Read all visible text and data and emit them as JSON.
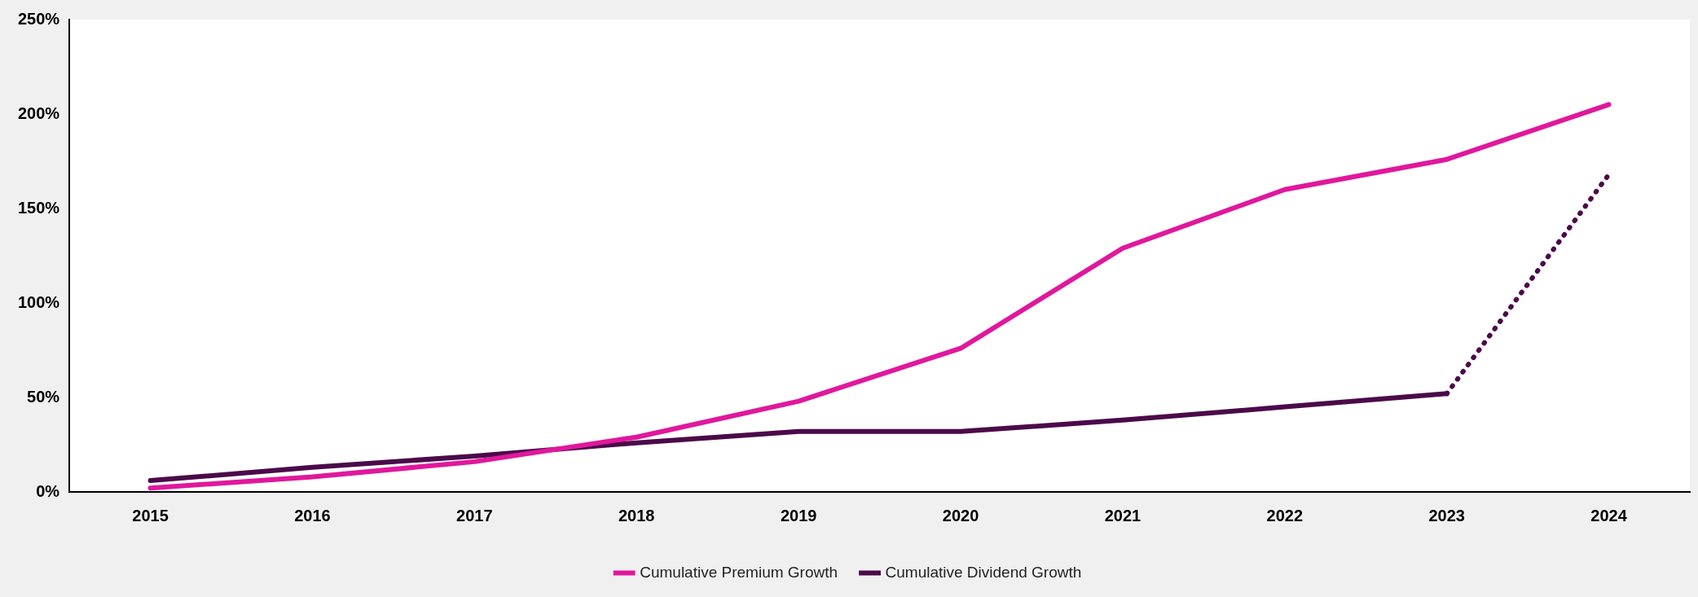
{
  "chart_data": {
    "type": "line",
    "categories": [
      "2015",
      "2016",
      "2017",
      "2018",
      "2019",
      "2020",
      "2021",
      "2022",
      "2023",
      "2024"
    ],
    "series": [
      {
        "name": "Cumulative Premium Growth",
        "color": "#e0189c",
        "values": [
          2,
          8,
          16,
          29,
          48,
          76,
          129,
          160,
          176,
          205
        ]
      },
      {
        "name": "Cumulative Dividend Growth",
        "color": "#4b0a4a",
        "values": [
          6,
          13,
          19,
          26,
          32,
          32,
          38,
          45,
          52,
          null
        ]
      },
      {
        "color": "#4b0a4a",
        "line_style": "dotted",
        "values": [
          null,
          null,
          null,
          null,
          null,
          null,
          null,
          null,
          52,
          168
        ]
      }
    ],
    "ylim": [
      0,
      250
    ],
    "yticks": [
      {
        "value": 0,
        "label": "0%"
      },
      {
        "value": 50,
        "label": "50%"
      },
      {
        "value": 100,
        "label": "100%"
      },
      {
        "value": 150,
        "label": "150%"
      },
      {
        "value": 200,
        "label": "200%"
      },
      {
        "value": 250,
        "label": "250%"
      }
    ],
    "grid": false,
    "legend": "bottom",
    "marker": "none",
    "line_style": "solid"
  }
}
